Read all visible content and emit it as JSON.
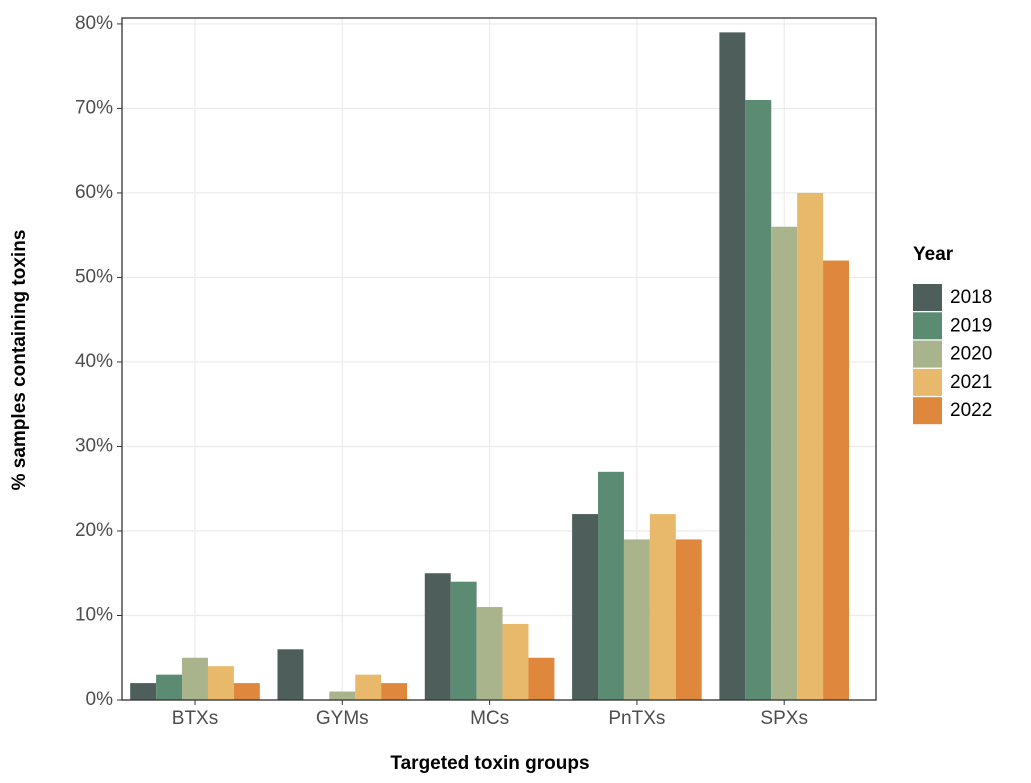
{
  "chart_data": {
    "type": "bar",
    "x_label": "Targeted toxin groups",
    "y_label": "% samples containing toxins",
    "legend_title": "Year",
    "legend_position": "right",
    "grid": true,
    "categories": [
      "BTXs",
      "GYMs",
      "MCs",
      "PnTXs",
      "SPXs"
    ],
    "series": [
      {
        "name": "2018",
        "color": "#4d5e5b",
        "values": [
          2,
          6,
          15,
          22,
          79
        ]
      },
      {
        "name": "2019",
        "color": "#5c8b74",
        "values": [
          3,
          0,
          14,
          27,
          71
        ]
      },
      {
        "name": "2020",
        "color": "#a9b38c",
        "values": [
          5,
          1,
          11,
          19,
          56
        ]
      },
      {
        "name": "2021",
        "color": "#e8b96a",
        "values": [
          4,
          3,
          9,
          22,
          60
        ]
      },
      {
        "name": "2022",
        "color": "#e0873e",
        "values": [
          2,
          2,
          5,
          19,
          52
        ]
      }
    ],
    "ylim": [
      0,
      80.7
    ],
    "yticks": [
      {
        "value": 0,
        "label": "0%"
      },
      {
        "value": 10,
        "label": "10%"
      },
      {
        "value": 20,
        "label": "20%"
      },
      {
        "value": 30,
        "label": "30%"
      },
      {
        "value": 40,
        "label": "40%"
      },
      {
        "value": 50,
        "label": "50%"
      },
      {
        "value": 60,
        "label": "60%"
      },
      {
        "value": 70,
        "label": "70%"
      },
      {
        "value": 80,
        "label": "80%"
      }
    ]
  }
}
